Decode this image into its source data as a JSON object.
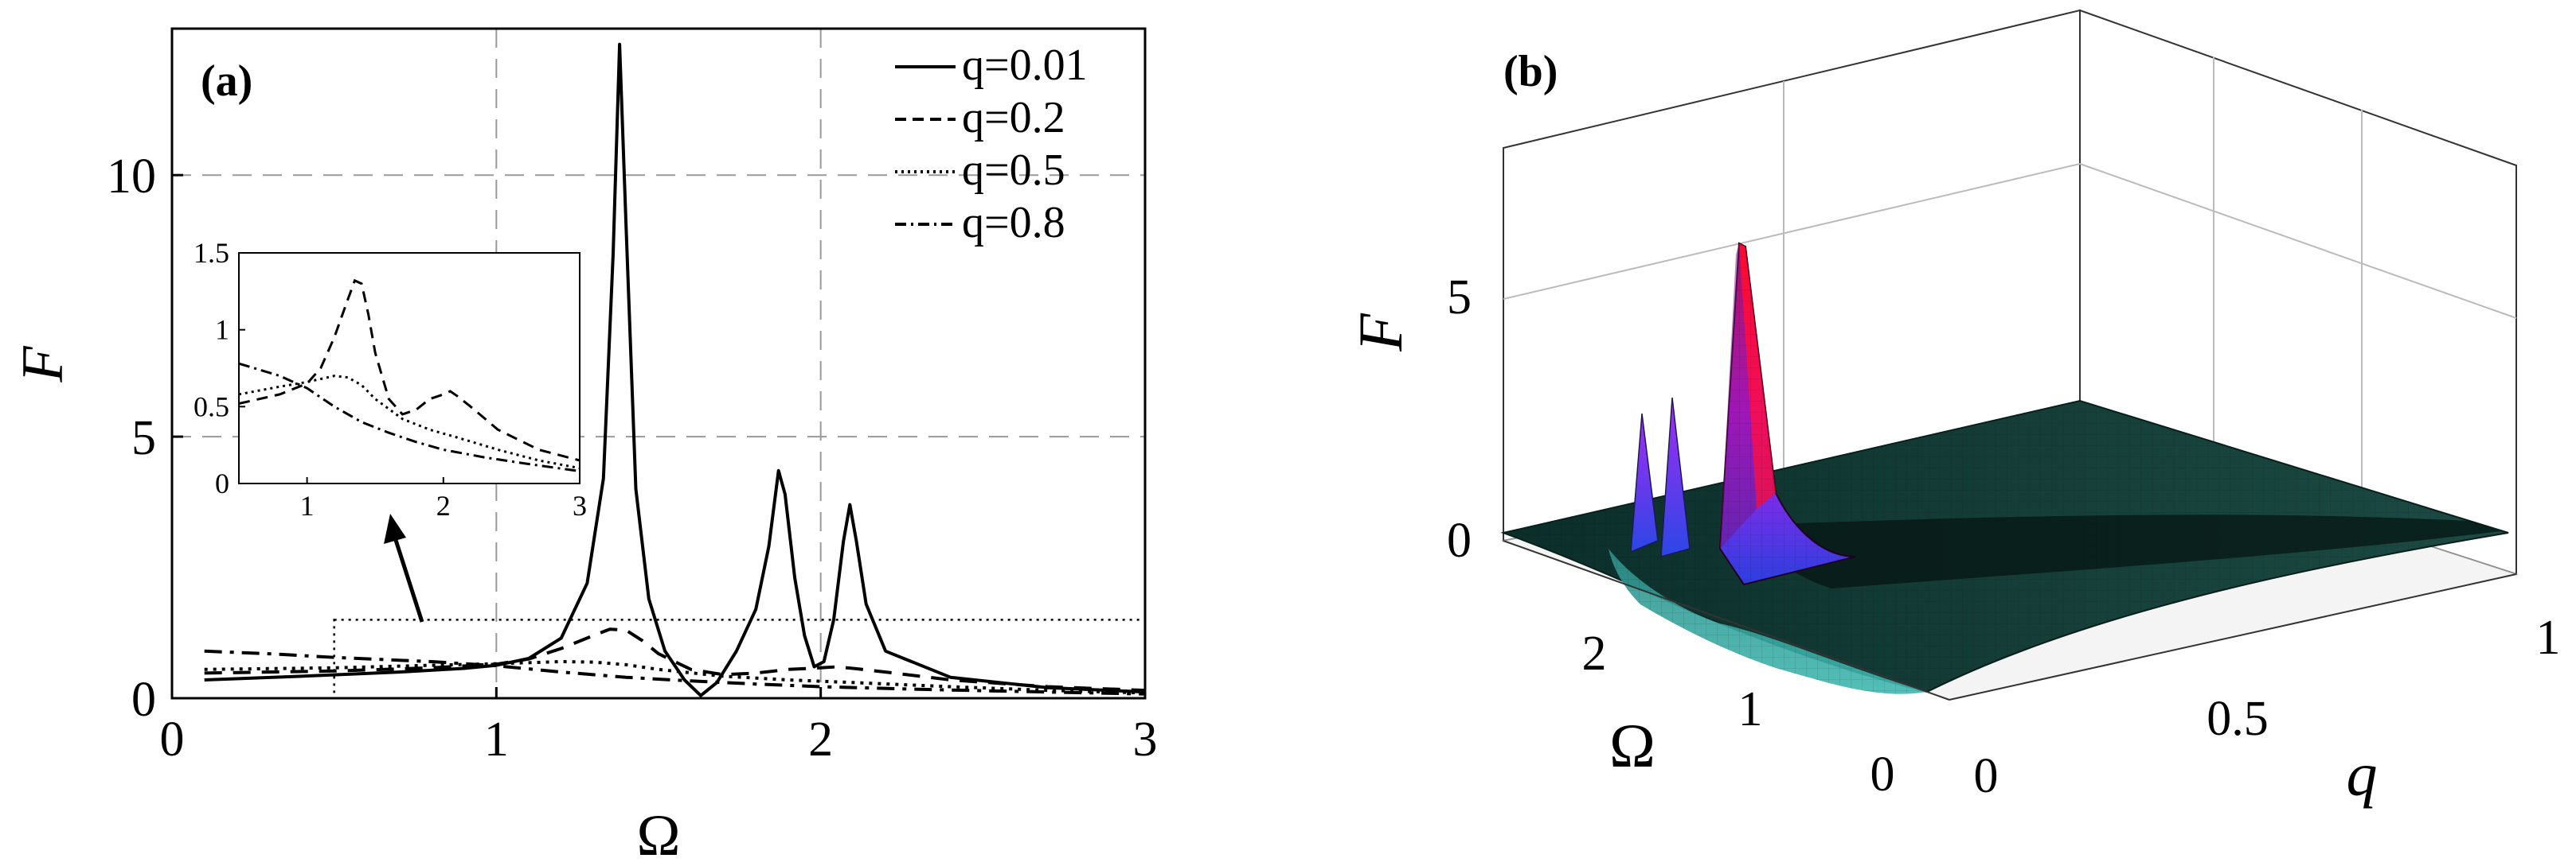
{
  "chart_data": [
    {
      "panel_label": "(a)",
      "type": "line",
      "xlabel": "Ω",
      "ylabel": "F",
      "xlim": [
        0,
        3
      ],
      "ylim": [
        0,
        12.8
      ],
      "xticks": [
        0,
        1,
        2,
        3
      ],
      "yticks": [
        0,
        5,
        10
      ],
      "grid": "dashed",
      "legend_position": "top-right",
      "series": [
        {
          "name": "q=0.01",
          "style": "solid",
          "x": [
            0.1,
            0.4,
            0.7,
            0.9,
            1.0,
            1.1,
            1.2,
            1.28,
            1.33,
            1.36,
            1.38,
            1.4,
            1.43,
            1.47,
            1.52,
            1.58,
            1.63,
            1.68,
            1.74,
            1.8,
            1.84,
            1.87,
            1.89,
            1.92,
            1.95,
            1.98,
            2.01,
            2.04,
            2.07,
            2.09,
            2.11,
            2.14,
            2.2,
            2.4,
            2.7,
            3.0
          ],
          "y": [
            0.35,
            0.42,
            0.5,
            0.57,
            0.63,
            0.76,
            1.15,
            2.2,
            4.2,
            8.5,
            12.5,
            9.0,
            4.0,
            1.9,
            0.9,
            0.35,
            0.05,
            0.3,
            0.9,
            1.7,
            2.9,
            4.35,
            3.9,
            2.3,
            1.2,
            0.6,
            0.7,
            1.5,
            3.0,
            3.7,
            3.0,
            1.8,
            0.9,
            0.4,
            0.2,
            0.12
          ]
        },
        {
          "name": "q=0.2",
          "style": "dashed",
          "x": [
            0.1,
            0.5,
            0.8,
            1.0,
            1.1,
            1.2,
            1.3,
            1.35,
            1.4,
            1.45,
            1.5,
            1.6,
            1.7,
            1.8,
            1.9,
            2.0,
            2.05,
            2.1,
            2.2,
            2.4,
            2.7,
            3.0
          ],
          "y": [
            0.48,
            0.52,
            0.58,
            0.65,
            0.75,
            0.95,
            1.2,
            1.32,
            1.3,
            1.1,
            0.85,
            0.55,
            0.45,
            0.48,
            0.55,
            0.58,
            0.6,
            0.57,
            0.5,
            0.35,
            0.22,
            0.15
          ]
        },
        {
          "name": "q=0.5",
          "style": "dotted",
          "x": [
            0.1,
            0.5,
            0.8,
            1.0,
            1.2,
            1.3,
            1.4,
            1.5,
            1.7,
            1.9,
            2.1,
            2.4,
            2.7,
            3.0
          ],
          "y": [
            0.55,
            0.58,
            0.63,
            0.66,
            0.7,
            0.69,
            0.64,
            0.55,
            0.42,
            0.35,
            0.3,
            0.22,
            0.15,
            0.1
          ]
        },
        {
          "name": "q=0.8",
          "style": "dashdot",
          "x": [
            0.1,
            0.3,
            0.5,
            0.8,
            1.0,
            1.2,
            1.4,
            1.6,
            1.8,
            2.0,
            2.3,
            2.6,
            3.0
          ],
          "y": [
            0.9,
            0.85,
            0.78,
            0.7,
            0.62,
            0.5,
            0.4,
            0.33,
            0.27,
            0.22,
            0.17,
            0.13,
            0.08
          ]
        }
      ],
      "inset": {
        "xlim": [
          0.5,
          3
        ],
        "ylim": [
          0,
          1.5
        ],
        "xticks": [
          1,
          2,
          3
        ],
        "yticks": [
          0,
          0.5,
          1,
          1.5
        ],
        "ytick_labels": [
          "0",
          "0.5",
          "1",
          "1.5"
        ],
        "zoom_region": {
          "x": [
            0.5,
            3
          ],
          "y": [
            0,
            1.5
          ]
        }
      }
    },
    {
      "panel_label": "(b)",
      "type": "surface3d",
      "xlabel": "q",
      "ylabel": "Ω",
      "zlabel": "F",
      "q_ticks": [
        "0",
        "0.5",
        "1"
      ],
      "omega_ticks": [
        "0",
        "1",
        "2"
      ],
      "f_ticks": [
        "0",
        "5"
      ],
      "q_range": [
        0,
        1
      ],
      "omega_range": [
        0,
        3
      ],
      "f_range": [
        0,
        8
      ],
      "peaks": [
        {
          "omega": 1.38,
          "q": 0.01,
          "F": 6.2
        },
        {
          "omega": 1.87,
          "q": 0.01,
          "F": 3.6
        },
        {
          "omega": 2.09,
          "q": 0.01,
          "F": 3.1
        }
      ],
      "colormap": [
        "#0c3a34",
        "#2aa6a0",
        "#3344dd",
        "#cc22ee",
        "#ee1133"
      ]
    }
  ]
}
